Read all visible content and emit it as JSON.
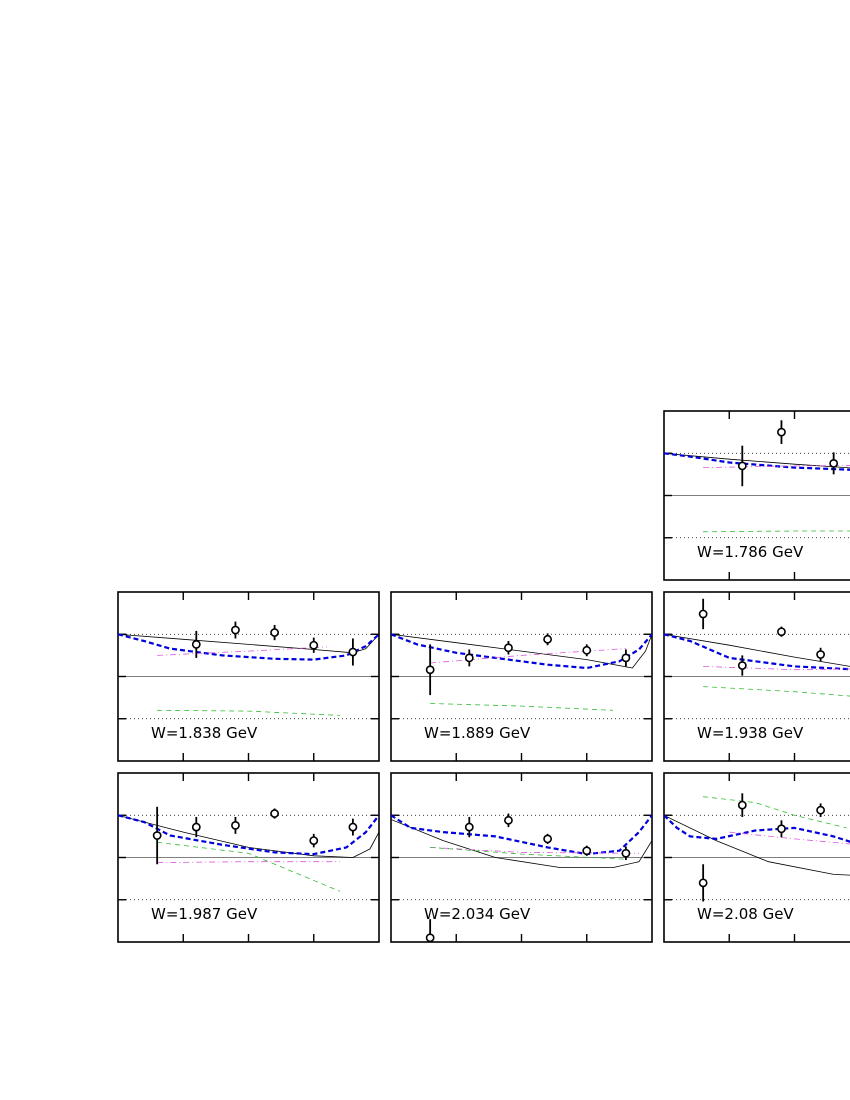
{
  "figure": {
    "colors": {
      "frame": "#000000",
      "model_solid": "#000000",
      "model_blue_dashed": "#0000dd",
      "model_magenta_dashdot": "#dd55dd",
      "model_green_dashed": "#33bb33",
      "data_points": "#000000",
      "zero_line": "#000000",
      "dotted_guides": "#000000"
    }
  },
  "chart_data": [
    {
      "type": "scatter",
      "label": "W=1.786 GeV",
      "xlim": [
        -1,
        1
      ],
      "ylim": [
        -1,
        1
      ],
      "grid": false,
      "points": {
        "x": [
          -0.4,
          -0.1,
          0.3
        ],
        "y": [
          0.35,
          0.75,
          0.38
        ],
        "err": [
          0.24,
          0.14,
          0.13
        ]
      },
      "curves": [
        {
          "style": "solid",
          "x": [
            -1,
            -0.5,
            0,
            0.5,
            1
          ],
          "y": [
            0.5,
            0.43,
            0.37,
            0.32,
            0.3
          ]
        },
        {
          "style": "blue-dashed",
          "x": [
            -1,
            -0.8,
            -0.5,
            0,
            0.5,
            1
          ],
          "y": [
            0.5,
            0.46,
            0.39,
            0.33,
            0.3,
            0.28
          ]
        },
        {
          "style": "magenta-dashdot",
          "x": [
            -0.7,
            0,
            1
          ],
          "y": [
            0.33,
            0.35,
            0.36
          ]
        },
        {
          "style": "green-dashed",
          "x": [
            -0.7,
            0,
            1
          ],
          "y": [
            -0.43,
            -0.42,
            -0.42
          ]
        }
      ]
    },
    {
      "type": "scatter",
      "label": "W=1.838 GeV",
      "xlim": [
        -1,
        1
      ],
      "ylim": [
        -1,
        1
      ],
      "grid": false,
      "points": {
        "x": [
          -0.4,
          -0.1,
          0.2,
          0.5,
          0.8
        ],
        "y": [
          0.38,
          0.55,
          0.52,
          0.37,
          0.29
        ],
        "err": [
          0.16,
          0.1,
          0.09,
          0.09,
          0.16
        ]
      },
      "curves": [
        {
          "style": "solid",
          "x": [
            -1,
            -0.5,
            0,
            0.5,
            0.8,
            0.9,
            1
          ],
          "y": [
            0.5,
            0.44,
            0.38,
            0.32,
            0.28,
            0.33,
            0.5
          ]
        },
        {
          "style": "blue-dashed",
          "x": [
            -1,
            -0.8,
            -0.6,
            -0.2,
            0.2,
            0.5,
            0.75,
            0.9,
            1
          ],
          "y": [
            0.5,
            0.42,
            0.33,
            0.25,
            0.21,
            0.2,
            0.25,
            0.36,
            0.5
          ]
        },
        {
          "style": "magenta-dashdot",
          "x": [
            -0.7,
            0,
            0.6
          ],
          "y": [
            0.25,
            0.3,
            0.35
          ]
        },
        {
          "style": "green-dashed",
          "x": [
            -0.7,
            0,
            0.7
          ],
          "y": [
            -0.4,
            -0.41,
            -0.46
          ]
        }
      ]
    },
    {
      "type": "scatter",
      "label": "W=1.889 GeV",
      "xlim": [
        -1,
        1
      ],
      "ylim": [
        -1,
        1
      ],
      "grid": false,
      "points": {
        "x": [
          -0.7,
          -0.4,
          -0.1,
          0.2,
          0.5,
          0.8
        ],
        "y": [
          0.08,
          0.22,
          0.34,
          0.44,
          0.31,
          0.22
        ],
        "err": [
          0.3,
          0.1,
          0.08,
          0.07,
          0.07,
          0.1
        ]
      },
      "curves": [
        {
          "style": "solid",
          "x": [
            -1,
            -0.5,
            0,
            0.5,
            0.85,
            0.95,
            1
          ],
          "y": [
            0.5,
            0.4,
            0.3,
            0.2,
            0.1,
            0.3,
            0.5
          ]
        },
        {
          "style": "blue-dashed",
          "x": [
            -1,
            -0.8,
            -0.5,
            -0.2,
            0.2,
            0.5,
            0.75,
            0.9,
            1
          ],
          "y": [
            0.5,
            0.38,
            0.28,
            0.22,
            0.14,
            0.1,
            0.18,
            0.32,
            0.5
          ]
        },
        {
          "style": "magenta-dashdot",
          "x": [
            -0.7,
            0,
            0.8
          ],
          "y": [
            0.16,
            0.25,
            0.33
          ]
        },
        {
          "style": "green-dashed",
          "x": [
            -0.7,
            0,
            0.7
          ],
          "y": [
            -0.32,
            -0.35,
            -0.4
          ]
        }
      ]
    },
    {
      "type": "scatter",
      "label": "W=1.938 GeV",
      "xlim": [
        -1,
        1
      ],
      "ylim": [
        -1,
        1
      ],
      "grid": false,
      "points": {
        "x": [
          -0.7,
          -0.4,
          -0.1,
          0.2
        ],
        "y": [
          0.74,
          0.13,
          0.53,
          0.26
        ],
        "err": [
          0.18,
          0.12,
          0.06,
          0.08
        ]
      },
      "curves": [
        {
          "style": "solid",
          "x": [
            -1,
            -0.5,
            0,
            0.5,
            1
          ],
          "y": [
            0.5,
            0.37,
            0.23,
            0.1,
            0.05
          ]
        },
        {
          "style": "blue-dashed",
          "x": [
            -1,
            -0.8,
            -0.5,
            0,
            0.5,
            1
          ],
          "y": [
            0.5,
            0.42,
            0.22,
            0.12,
            0.08,
            0.05
          ]
        },
        {
          "style": "magenta-dashdot",
          "x": [
            -0.7,
            0,
            1
          ],
          "y": [
            0.12,
            0.08,
            0.1
          ]
        },
        {
          "style": "green-dashed",
          "x": [
            -0.7,
            0,
            1
          ],
          "y": [
            -0.12,
            -0.18,
            -0.3
          ]
        }
      ]
    },
    {
      "type": "scatter",
      "label": "W=1.987 GeV",
      "xlim": [
        -1,
        1
      ],
      "ylim": [
        -1,
        1
      ],
      "grid": false,
      "points": {
        "x": [
          -0.7,
          -0.4,
          -0.1,
          0.2,
          0.5,
          0.8
        ],
        "y": [
          0.26,
          0.36,
          0.38,
          0.52,
          0.2,
          0.36
        ],
        "err": [
          0.34,
          0.12,
          0.1,
          0.06,
          0.08,
          0.1
        ]
      },
      "curves": [
        {
          "style": "solid",
          "x": [
            -1,
            -0.5,
            0,
            0.5,
            0.8,
            0.93,
            1
          ],
          "y": [
            0.5,
            0.3,
            0.12,
            0.02,
            0,
            0.1,
            0.3
          ]
        },
        {
          "style": "blue-dashed",
          "x": [
            -1,
            -0.8,
            -0.6,
            -0.2,
            0.2,
            0.5,
            0.75,
            0.9,
            1
          ],
          "y": [
            0.5,
            0.42,
            0.26,
            0.15,
            0.06,
            0.04,
            0.12,
            0.3,
            0.5
          ]
        },
        {
          "style": "magenta-dashdot",
          "x": [
            -0.7,
            0,
            0.7
          ],
          "y": [
            -0.06,
            -0.05,
            -0.05
          ]
        },
        {
          "style": "green-dashed",
          "x": [
            -0.7,
            0,
            0.7
          ],
          "y": [
            0.18,
            0.05,
            -0.4
          ]
        }
      ]
    },
    {
      "type": "scatter",
      "label": "W=2.034 GeV",
      "xlim": [
        -1,
        1
      ],
      "ylim": [
        -1,
        1
      ],
      "grid": false,
      "points": {
        "x": [
          -0.7,
          -0.4,
          -0.1,
          0.2,
          0.5,
          0.8
        ],
        "y": [
          -0.95,
          0.36,
          0.44,
          0.22,
          0.08,
          0.05
        ],
        "err": [
          0.22,
          0.12,
          0.08,
          0.06,
          0.06,
          0.08
        ]
      },
      "curves": [
        {
          "style": "solid",
          "x": [
            -1,
            -0.6,
            -0.2,
            0.3,
            0.7,
            0.9,
            1
          ],
          "y": [
            0.45,
            0.2,
            0,
            -0.12,
            -0.12,
            -0.05,
            0.2
          ]
        },
        {
          "style": "blue-dashed",
          "x": [
            -1,
            -0.85,
            -0.6,
            -0.2,
            0.2,
            0.5,
            0.75,
            0.9,
            1
          ],
          "y": [
            0.5,
            0.35,
            0.3,
            0.25,
            0.12,
            0.04,
            0.08,
            0.3,
            0.5
          ]
        },
        {
          "style": "magenta-dashdot",
          "x": [
            -0.7,
            0,
            0.9
          ],
          "y": [
            0.12,
            0.06,
            0.05
          ]
        },
        {
          "style": "green-dashed",
          "x": [
            -0.7,
            0,
            0.8
          ],
          "y": [
            0.12,
            0.04,
            -0.02
          ]
        }
      ]
    },
    {
      "type": "scatter",
      "label": "W=2.08 GeV",
      "xlim": [
        -1,
        1
      ],
      "ylim": [
        -1,
        1
      ],
      "grid": false,
      "points": {
        "x": [
          -0.7,
          -0.4,
          -0.1,
          0.2
        ],
        "y": [
          -0.3,
          0.62,
          0.34,
          0.56
        ],
        "err": [
          0.22,
          0.14,
          0.1,
          0.08
        ]
      },
      "curves": [
        {
          "style": "solid",
          "x": [
            -1,
            -0.6,
            -0.2,
            0.3,
            1
          ],
          "y": [
            0.5,
            0.2,
            -0.05,
            -0.2,
            -0.25
          ]
        },
        {
          "style": "blue-dashed",
          "x": [
            -1,
            -0.9,
            -0.8,
            -0.6,
            -0.3,
            0,
            0.3,
            0.6,
            1
          ],
          "y": [
            0.5,
            0.35,
            0.25,
            0.22,
            0.32,
            0.35,
            0.25,
            0.1,
            0
          ]
        },
        {
          "style": "magenta-dashdot",
          "x": [
            -0.5,
            0,
            0.5
          ],
          "y": [
            0.3,
            0.22,
            0.15
          ]
        },
        {
          "style": "green-dashed",
          "x": [
            -0.7,
            -0.3,
            0,
            0.4
          ],
          "y": [
            0.72,
            0.65,
            0.5,
            0.35
          ]
        }
      ]
    }
  ]
}
